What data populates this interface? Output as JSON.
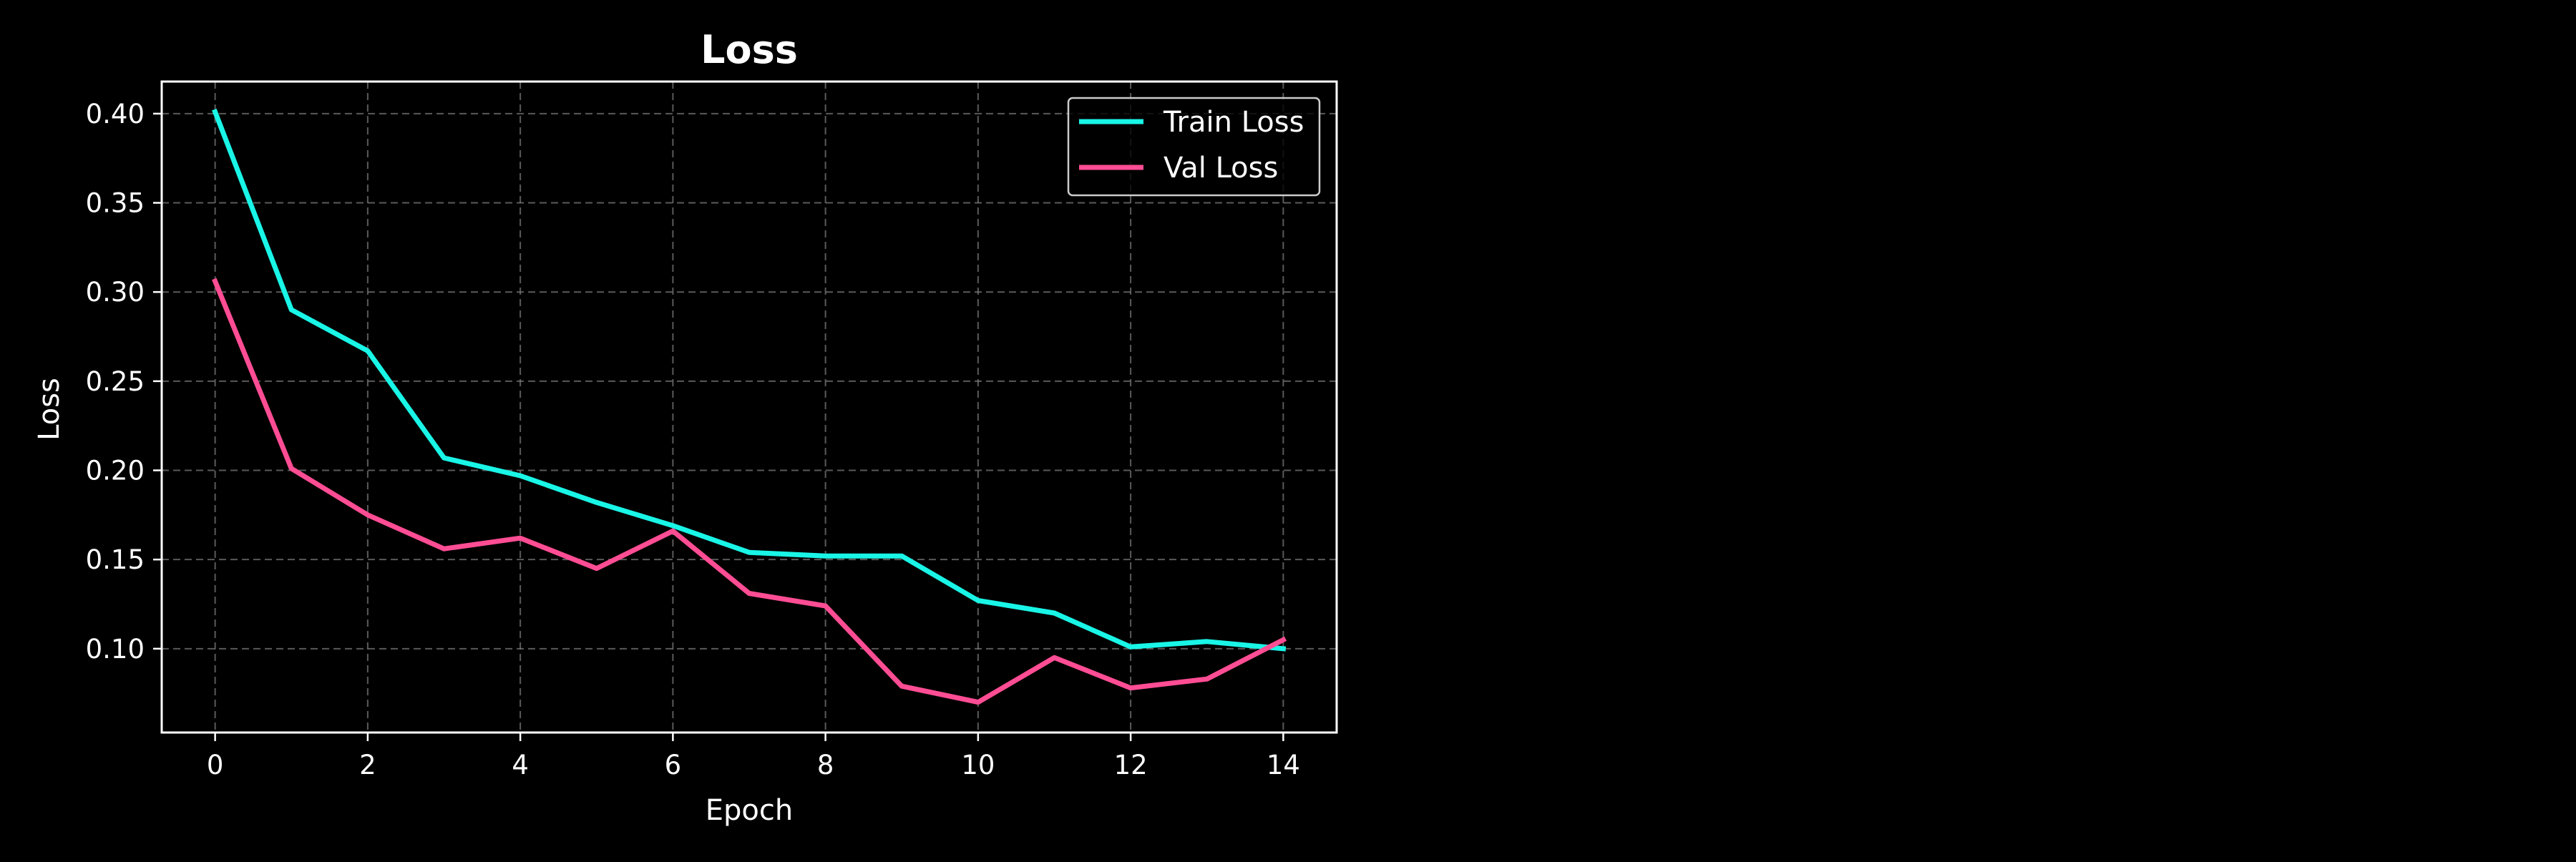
{
  "chart_data": {
    "type": "line",
    "title": "Loss",
    "xlabel": "Epoch",
    "ylabel": "Loss",
    "xlim": [
      -0.7,
      14.7
    ],
    "ylim": [
      0.053,
      0.418
    ],
    "xticks": [
      0,
      2,
      4,
      6,
      8,
      10,
      12,
      14
    ],
    "xtick_labels": [
      "0",
      "2",
      "4",
      "6",
      "8",
      "10",
      "12",
      "14"
    ],
    "yticks": [
      0.1,
      0.15,
      0.2,
      0.25,
      0.3,
      0.35,
      0.4
    ],
    "ytick_labels": [
      "0.10",
      "0.15",
      "0.20",
      "0.25",
      "0.30",
      "0.35",
      "0.40"
    ],
    "grid": true,
    "legend_position": "top-right",
    "x": [
      0,
      1,
      2,
      3,
      4,
      5,
      6,
      7,
      8,
      9,
      10,
      11,
      12,
      13,
      14
    ],
    "series": [
      {
        "name": "Train Loss",
        "color": "#19f5e6",
        "values": [
          0.401,
          0.29,
          0.267,
          0.207,
          0.197,
          0.182,
          0.169,
          0.154,
          0.152,
          0.152,
          0.127,
          0.12,
          0.101,
          0.104,
          0.1
        ]
      },
      {
        "name": "Val Loss",
        "color": "#ff4d94",
        "values": [
          0.306,
          0.201,
          0.175,
          0.156,
          0.162,
          0.145,
          0.166,
          0.131,
          0.124,
          0.079,
          0.07,
          0.095,
          0.078,
          0.083,
          0.105
        ]
      }
    ]
  }
}
